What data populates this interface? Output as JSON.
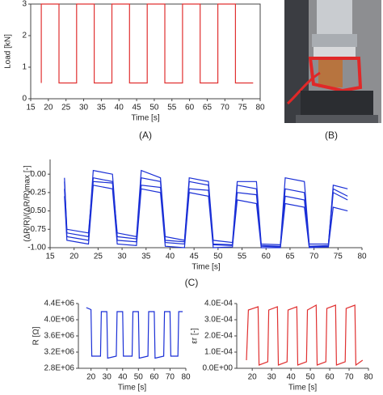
{
  "panel_labels": [
    "(A)",
    "(B)",
    "(C)"
  ],
  "chart_data": [
    {
      "type": "line",
      "xlabel": "Time [s]",
      "ylabel": "Load [kN]",
      "x": [
        18,
        18,
        23,
        23,
        28,
        28,
        33,
        33,
        38,
        38,
        43,
        43,
        48,
        48,
        53,
        53,
        58,
        58,
        63,
        63,
        68,
        68,
        73,
        73,
        78
      ],
      "series": [
        {
          "color": "#e03030",
          "values": [
            0.5,
            3,
            3,
            0.5,
            0.5,
            3,
            3,
            0.5,
            0.5,
            3,
            3,
            0.5,
            0.5,
            3,
            3,
            0.5,
            0.5,
            3,
            3,
            0.5,
            0.5,
            3,
            3,
            0.5,
            0.5
          ]
        }
      ],
      "xlim": [
        15,
        80
      ],
      "xticks": [
        15,
        20,
        25,
        30,
        35,
        40,
        45,
        50,
        55,
        60,
        65,
        70,
        75,
        80
      ],
      "ylim": [
        0,
        3
      ],
      "yticks": [
        0,
        1,
        2,
        3
      ],
      "frame": true
    },
    {
      "type": "line",
      "xlabel": "Time [s]",
      "ylabel": "(ΔR/R)/(ΔR/R)max [-]",
      "x": [
        18,
        18.5,
        23,
        24,
        28,
        29,
        33,
        34,
        38,
        39,
        43,
        44,
        48,
        49,
        53,
        54,
        58,
        59,
        63,
        64,
        68,
        69,
        73,
        74,
        77
      ],
      "series": [
        {
          "color": "#1a2fd6",
          "values": [
            -0.05,
            -0.8,
            -0.85,
            0.05,
            0,
            -0.85,
            -0.88,
            -0.05,
            -0.1,
            -0.9,
            -0.92,
            -0.1,
            -0.15,
            -0.95,
            -0.96,
            -0.15,
            -0.2,
            -0.97,
            -0.98,
            -0.2,
            -0.25,
            -0.98,
            -0.97,
            -0.15,
            -0.2
          ]
        },
        {
          "color": "#1a2fd6",
          "values": [
            -0.3,
            -0.9,
            -0.95,
            -0.15,
            -0.2,
            -0.95,
            -0.97,
            -0.2,
            -0.25,
            -0.98,
            -1,
            -0.25,
            -0.3,
            -1,
            -0.99,
            -0.35,
            -0.4,
            -1,
            -1,
            -0.4,
            -0.45,
            -1,
            -0.99,
            -0.45,
            -0.5
          ]
        },
        {
          "color": "#1a2fd6",
          "values": [
            -0.1,
            -0.75,
            -0.8,
            -0.05,
            -0.1,
            -0.8,
            -0.85,
            0.05,
            -0.05,
            -0.85,
            -0.9,
            -0.05,
            -0.1,
            -0.9,
            -0.93,
            -0.1,
            -0.1,
            -0.95,
            -0.96,
            -0.05,
            -0.1,
            -0.95,
            -0.95,
            -0.2,
            -0.3
          ]
        },
        {
          "color": "#1a2fd6",
          "values": [
            -0.2,
            -0.85,
            -0.9,
            -0.1,
            -0.12,
            -0.9,
            -0.92,
            -0.15,
            -0.18,
            -0.93,
            -0.95,
            -0.2,
            -0.22,
            -0.96,
            -0.97,
            -0.25,
            -0.28,
            -0.98,
            -0.99,
            -0.3,
            -0.35,
            -0.99,
            -0.98,
            -0.25,
            -0.35
          ]
        }
      ],
      "xlim": [
        15,
        80
      ],
      "xticks": [
        15,
        20,
        25,
        30,
        35,
        40,
        45,
        50,
        55,
        60,
        65,
        70,
        75,
        80
      ],
      "ylim": [
        -1,
        0.2
      ],
      "yticks": [
        {
          "value": -1,
          "label": "-1.00"
        },
        {
          "value": -0.75,
          "label": "-0.75"
        },
        {
          "value": -0.5,
          "label": "-0.50"
        },
        {
          "value": -0.25,
          "label": "-0.25"
        },
        {
          "value": 0,
          "label": "0.00"
        }
      ],
      "frame": false
    },
    {
      "type": "line",
      "xlabel": "Time [s]",
      "ylabel": "R [Ω]",
      "x": [
        17,
        20,
        20.5,
        26,
        26.5,
        30,
        30.5,
        36,
        36.5,
        40,
        40.5,
        46,
        46.5,
        50,
        50.5,
        56,
        56.5,
        60,
        60.5,
        66,
        66.5,
        70,
        70.5,
        75,
        75.5,
        78
      ],
      "series": [
        {
          "color": "#1a2fd6",
          "values": [
            4300000,
            4250000,
            3100000,
            3100000,
            4200000,
            4200000,
            3050000,
            3100000,
            4200000,
            4200000,
            3100000,
            3100000,
            4200000,
            4200000,
            3050000,
            3100000,
            4200000,
            4200000,
            3050000,
            3100000,
            4200000,
            4200000,
            3100000,
            3100000,
            4200000,
            4200000
          ]
        }
      ],
      "xlim": [
        12,
        80
      ],
      "xticks": [
        20,
        30,
        40,
        50,
        60,
        70,
        80
      ],
      "ylim": [
        2800000,
        4400000
      ],
      "yticks": [
        {
          "value": 2800000,
          "label": "2.8E+06"
        },
        {
          "value": 3200000,
          "label": "3.2E+06"
        },
        {
          "value": 3600000,
          "label": "3.6E+06"
        },
        {
          "value": 4000000,
          "label": "4.0E+06"
        },
        {
          "value": 4400000,
          "label": "4.4E+06"
        }
      ],
      "frame": false
    },
    {
      "type": "line",
      "xlabel": "Time [s]",
      "ylabel": "εr [-]",
      "x": [
        17,
        18,
        23,
        23.5,
        28,
        28.5,
        33,
        33.5,
        38,
        38.5,
        43,
        43.5,
        48,
        48.5,
        53,
        53.5,
        58,
        58.5,
        63,
        63.5,
        68,
        68.5,
        73,
        73.5,
        77
      ],
      "series": [
        {
          "color": "#e03030",
          "values": [
            5e-05,
            0.00036,
            0.00038,
            2e-05,
            4e-05,
            0.00036,
            0.00038,
            2e-05,
            4e-05,
            0.00036,
            0.00038,
            2e-05,
            4e-05,
            0.00036,
            0.00039,
            2e-05,
            4e-05,
            0.00037,
            0.00039,
            2e-05,
            4e-05,
            0.00037,
            0.00039,
            2e-05,
            5e-05
          ]
        }
      ],
      "xlim": [
        12,
        80
      ],
      "xticks": [
        20,
        30,
        40,
        50,
        60,
        70,
        80
      ],
      "ylim": [
        0,
        0.0004
      ],
      "yticks": [
        {
          "value": 0,
          "label": "0.0E+00"
        },
        {
          "value": 0.0001,
          "label": "1.0E-04"
        },
        {
          "value": 0.0002,
          "label": "2.0E-04"
        },
        {
          "value": 0.0003,
          "label": "3.0E-04"
        },
        {
          "value": 0.0004,
          "label": "4.0E-04"
        }
      ],
      "frame": false
    }
  ]
}
